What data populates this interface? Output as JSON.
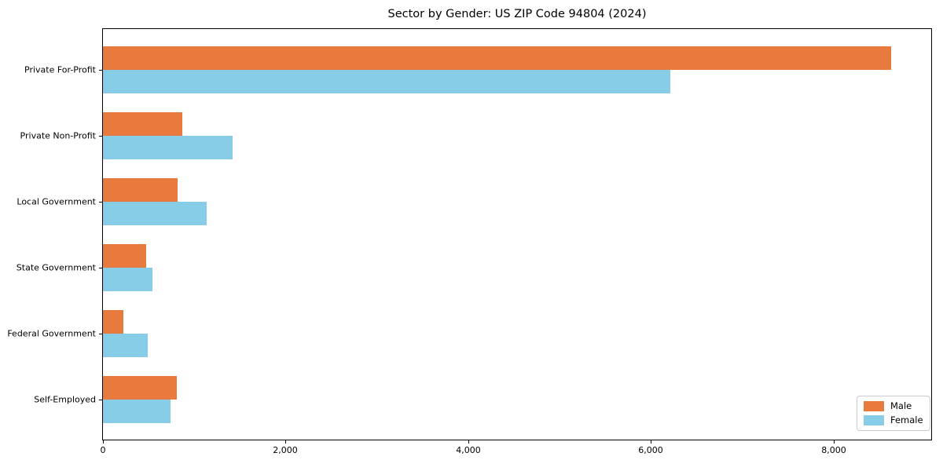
{
  "title": "Sector by Gender: US ZIP Code 94804 (2024)",
  "chart_data": {
    "type": "bar",
    "orientation": "horizontal",
    "title": "Sector by Gender: US ZIP Code 94804 (2024)",
    "categories": [
      "Private For-Profit",
      "Private Non-Profit",
      "Local Government",
      "State Government",
      "Federal Government",
      "Self-Employed"
    ],
    "series": [
      {
        "name": "Male",
        "color": "#E87A3D",
        "values": [
          8630,
          870,
          820,
          470,
          220,
          810
        ]
      },
      {
        "name": "Female",
        "color": "#87CDE8",
        "values": [
          6210,
          1420,
          1140,
          540,
          490,
          740
        ]
      }
    ],
    "xlabel": "",
    "ylabel": "",
    "xlim": [
      0,
      9070
    ],
    "xticks": [
      0,
      2000,
      4000,
      6000,
      8000
    ],
    "xtick_labels": [
      "0",
      "2,000",
      "4,000",
      "6,000",
      "8,000"
    ],
    "grid": false,
    "legend_position": "lower right",
    "background_color": "#ffffff",
    "spine_color": "#000000"
  }
}
